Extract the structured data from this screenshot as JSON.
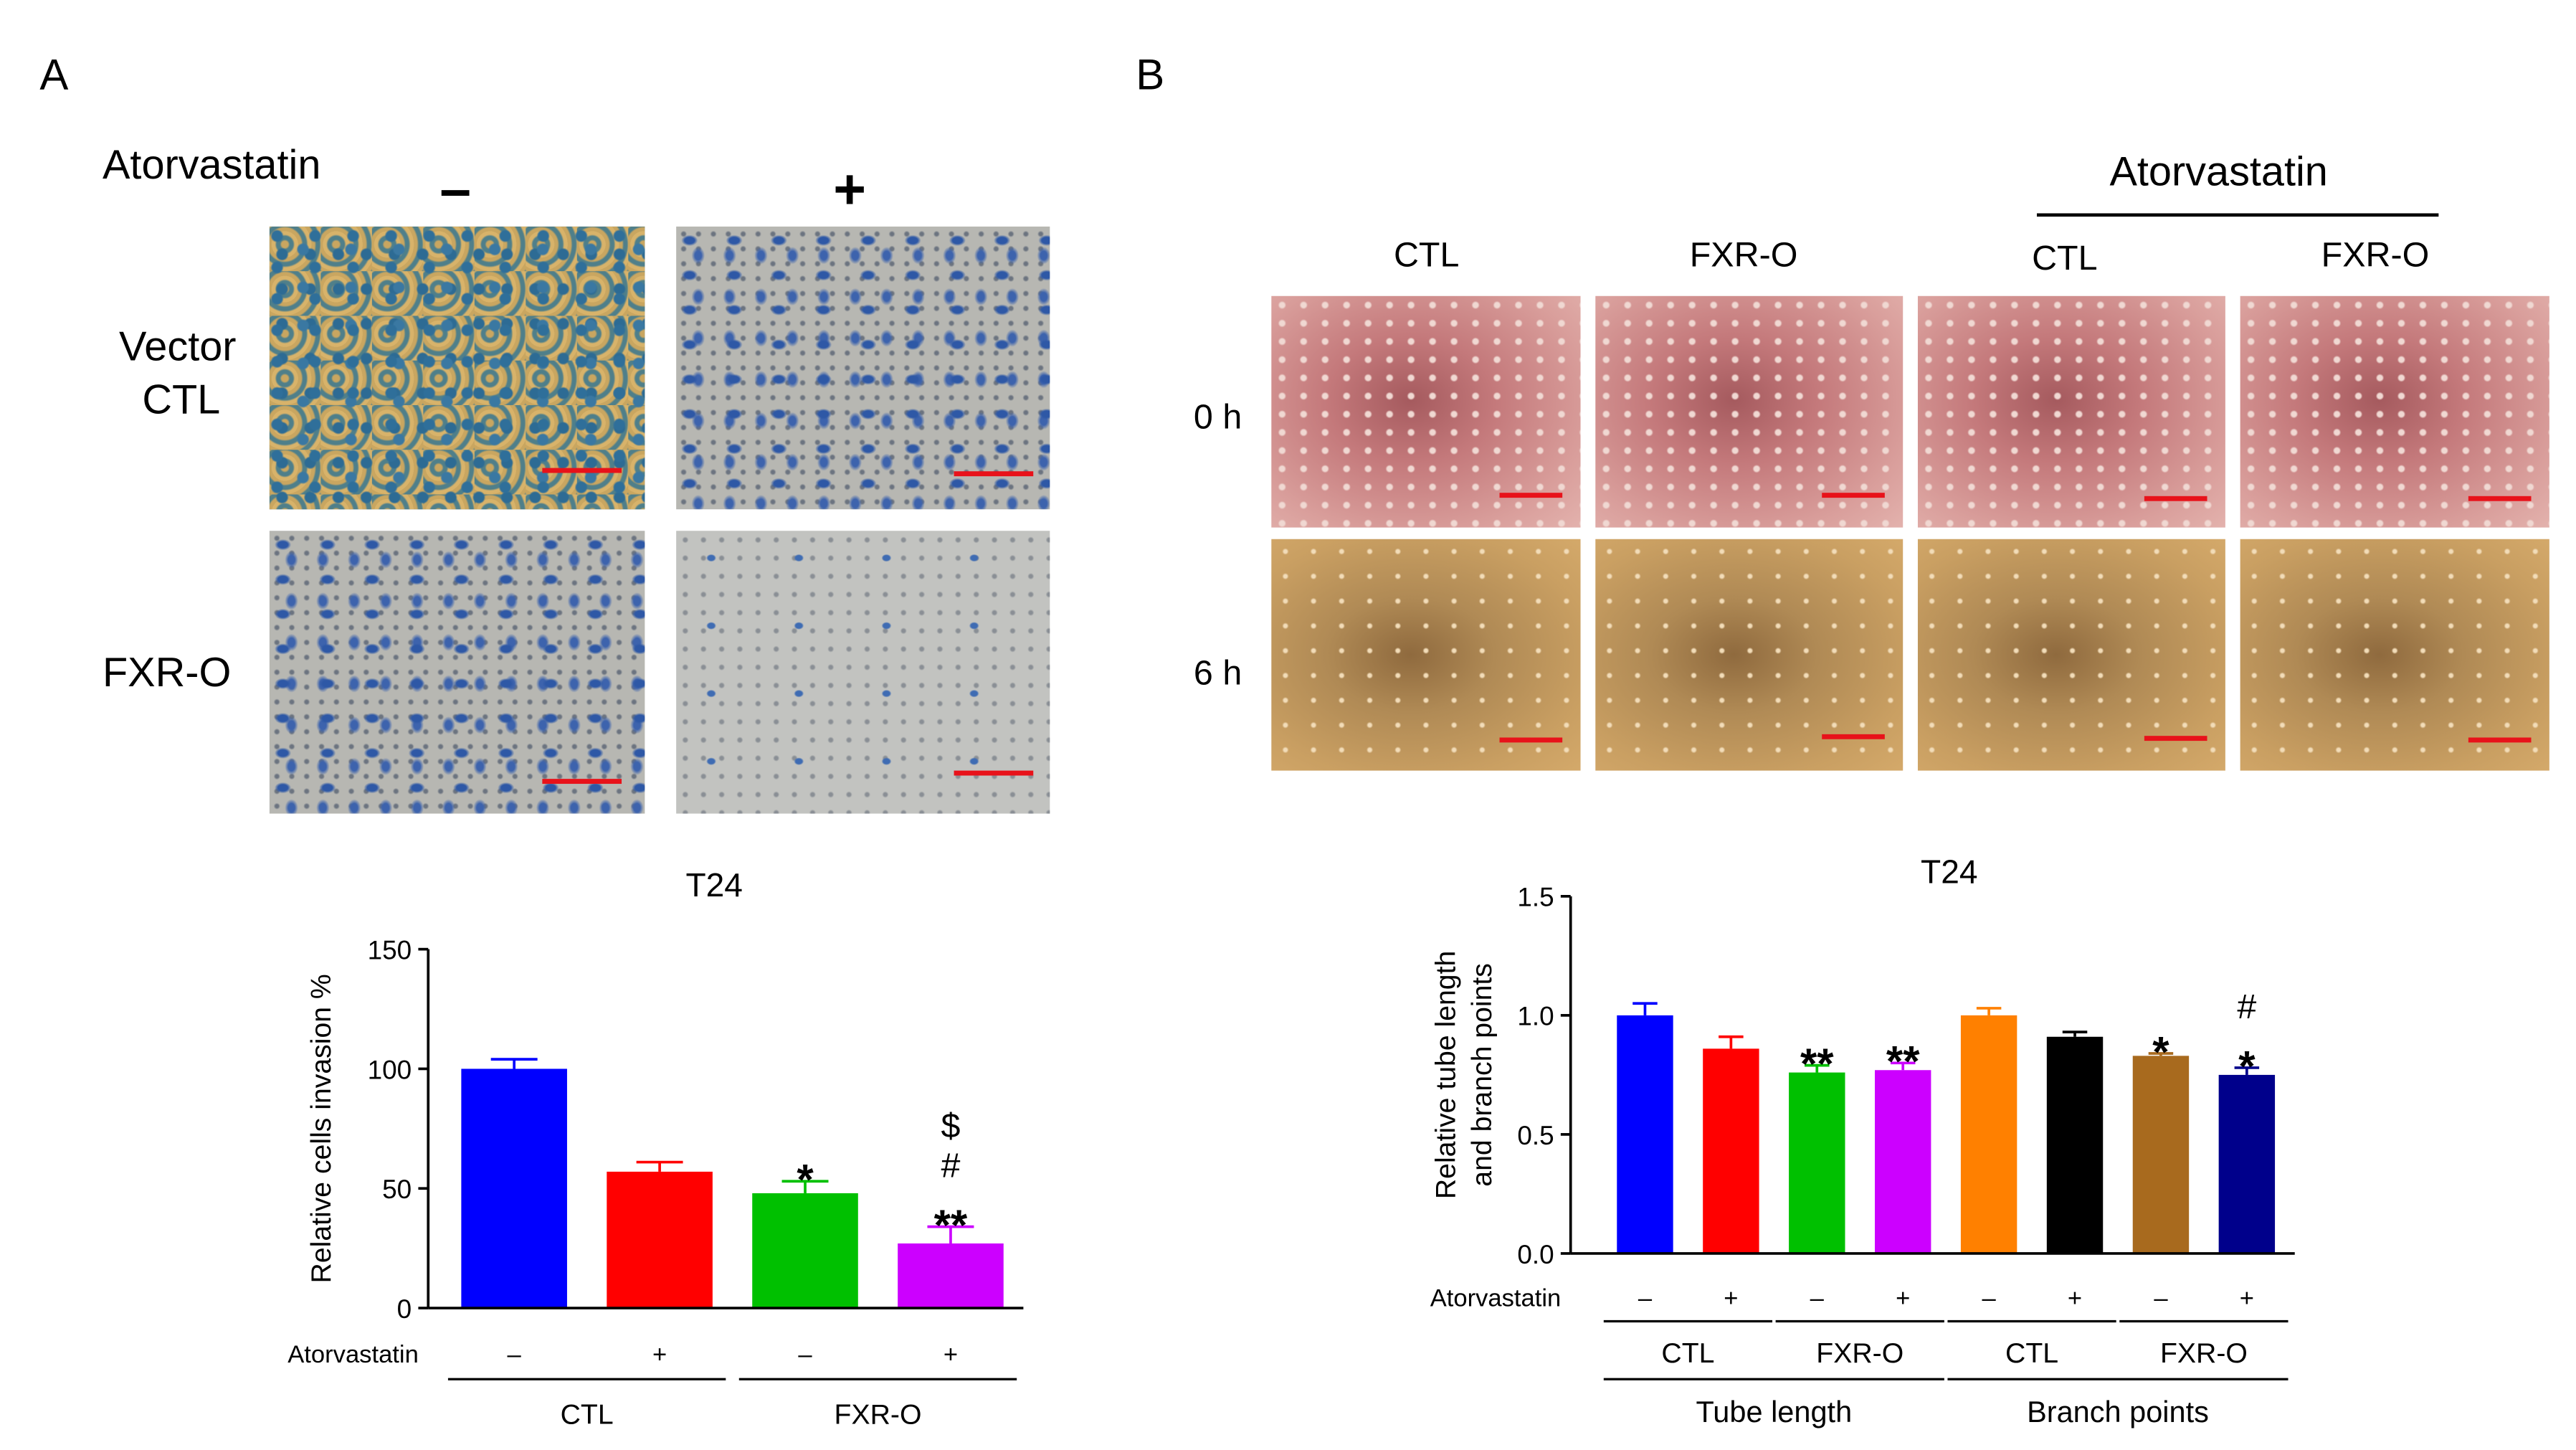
{
  "panels": {
    "a": {
      "letter": "A",
      "treatment_label": "Atorvastatin",
      "col_minus": "–",
      "col_plus": "+",
      "row1_label_line1": "Vector",
      "row1_label_line2": "CTL",
      "row2_label": "FXR-O"
    },
    "b": {
      "letter": "B",
      "treatment_label": "Atorvastatin",
      "col_headers": [
        "CTL",
        "FXR-O",
        "CTL",
        "FXR-O"
      ],
      "row_labels": [
        "0 h",
        "6 h"
      ]
    }
  },
  "colors": {
    "blue": "#0000ff",
    "red": "#ff0000",
    "green": "#00c000",
    "magenta": "#cc00ff",
    "orange": "#ff8000",
    "black": "#000000",
    "brown": "#a86a1e",
    "navy": "#00008b",
    "scalebar": "#e8121a"
  },
  "chart_data": [
    {
      "type": "bar",
      "title": "T24",
      "ylabel": "Relative cells invasion %",
      "ylim": [
        0,
        150
      ],
      "yticks": [
        "0",
        "50",
        "100",
        "150"
      ],
      "row_label": "Atorvastatin",
      "categories": [
        "–",
        "+",
        "–",
        "+"
      ],
      "values": [
        100,
        57,
        48,
        27
      ],
      "errors": [
        4,
        4,
        5,
        7
      ],
      "colors": [
        "#0000ff",
        "#ff0000",
        "#00c000",
        "#cc00ff"
      ],
      "annotations": [
        [],
        [],
        [
          "*"
        ],
        [
          "$",
          "#",
          "**"
        ]
      ],
      "groups": [
        {
          "label": "CTL",
          "bars": [
            0,
            1
          ]
        },
        {
          "label": "FXR-O",
          "bars": [
            2,
            3
          ]
        }
      ]
    },
    {
      "type": "bar",
      "title": "T24",
      "ylabel": "Relative tube length and branch points",
      "ylabel_lines": [
        "Relative tube length",
        "and branch points"
      ],
      "ylim": [
        0,
        1.5
      ],
      "yticks": [
        "0.0",
        "0.5",
        "1.0",
        "1.5"
      ],
      "row_label": "Atorvastatin",
      "categories": [
        "–",
        "+",
        "–",
        "+",
        "–",
        "+",
        "–",
        "+"
      ],
      "values": [
        1.0,
        0.86,
        0.76,
        0.77,
        1.0,
        0.91,
        0.83,
        0.75
      ],
      "errors": [
        0.05,
        0.05,
        0.03,
        0.03,
        0.03,
        0.02,
        0.01,
        0.03
      ],
      "colors": [
        "#0000ff",
        "#ff0000",
        "#00c000",
        "#cc00ff",
        "#ff8000",
        "#000000",
        "#a86a1e",
        "#00008b"
      ],
      "annotations": [
        [],
        [],
        [
          "**"
        ],
        [
          "**"
        ],
        [],
        [],
        [
          "*"
        ],
        [
          "#",
          "*"
        ]
      ],
      "groups": [
        {
          "label": "CTL",
          "bars": [
            0,
            1
          ]
        },
        {
          "label": "FXR-O",
          "bars": [
            2,
            3
          ]
        },
        {
          "label": "CTL",
          "bars": [
            4,
            5
          ]
        },
        {
          "label": "FXR-O",
          "bars": [
            6,
            7
          ]
        }
      ],
      "supergroups": [
        {
          "label": "Tube length",
          "bars": [
            0,
            3
          ]
        },
        {
          "label": "Branch points",
          "bars": [
            4,
            7
          ]
        }
      ]
    }
  ]
}
